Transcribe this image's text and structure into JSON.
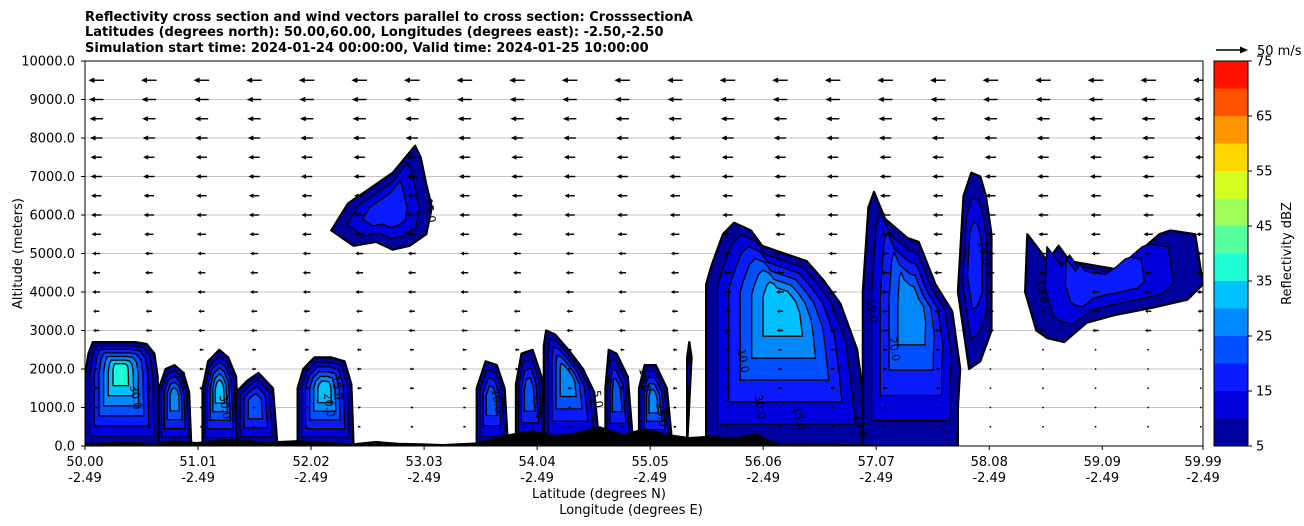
{
  "chart_data": {
    "type": "contour-cross-section",
    "title_lines": [
      "Reflectivity cross section and wind vectors parallel to cross section: CrosssectionA",
      "Latitudes (degrees north): 50.00,60.00, Longitudes (degrees east): -2.50,-2.50",
      "Simulation start time: 2024-01-24 00:00:00, Valid time: 2024-01-25 10:00:00"
    ],
    "xlabel_line1": "Latitude (degrees N)",
    "xlabel_line2": "Longitude (degrees E)",
    "ylabel": "Altitude (meters)",
    "xlim": [
      50.0,
      59.99
    ],
    "ylim": [
      0,
      10000
    ],
    "x_ticks": [
      {
        "lat": 50.0,
        "lat_label": "50.00",
        "lon_label": "-2.49"
      },
      {
        "lat": 51.01,
        "lat_label": "51.01",
        "lon_label": "-2.49"
      },
      {
        "lat": 52.02,
        "lat_label": "52.02",
        "lon_label": "-2.49"
      },
      {
        "lat": 53.03,
        "lat_label": "53.03",
        "lon_label": "-2.49"
      },
      {
        "lat": 54.04,
        "lat_label": "54.04",
        "lon_label": "-2.49"
      },
      {
        "lat": 55.05,
        "lat_label": "55.05",
        "lon_label": "-2.49"
      },
      {
        "lat": 56.06,
        "lat_label": "56.06",
        "lon_label": "-2.49"
      },
      {
        "lat": 57.07,
        "lat_label": "57.07",
        "lon_label": "-2.49"
      },
      {
        "lat": 58.08,
        "lat_label": "58.08",
        "lon_label": "-2.49"
      },
      {
        "lat": 59.09,
        "lat_label": "59.09",
        "lon_label": "-2.49"
      },
      {
        "lat": 59.99,
        "lat_label": "59.99",
        "lon_label": "-2.49"
      }
    ],
    "y_ticks": [
      {
        "value": 0,
        "label": "0.0"
      },
      {
        "value": 1000,
        "label": "1000.0"
      },
      {
        "value": 2000,
        "label": "2000.0"
      },
      {
        "value": 3000,
        "label": "3000.0"
      },
      {
        "value": 4000,
        "label": "4000.0"
      },
      {
        "value": 5000,
        "label": "5000.0"
      },
      {
        "value": 6000,
        "label": "6000.0"
      },
      {
        "value": 7000,
        "label": "7000.0"
      },
      {
        "value": 8000,
        "label": "8000.0"
      },
      {
        "value": 9000,
        "label": "9000.0"
      },
      {
        "value": 10000,
        "label": "10000.0"
      }
    ],
    "colorbar": {
      "label": "Reflectivity dBZ",
      "range": [
        5,
        75
      ],
      "tick_values": [
        5,
        15,
        25,
        35,
        45,
        55,
        65,
        75
      ],
      "tick_labels": [
        "5",
        "15",
        "25",
        "35",
        "45",
        "55",
        "65",
        "75"
      ],
      "levels": [
        5,
        10,
        15,
        20,
        25,
        30,
        35,
        40,
        45,
        50,
        55,
        60,
        65,
        70,
        75
      ],
      "colors": [
        "#00009f",
        "#0000dd",
        "#0a1bff",
        "#0050ff",
        "#0088ff",
        "#00c0ff",
        "#1fffd5",
        "#58ff9e",
        "#9fff58",
        "#d5ff1f",
        "#ffd700",
        "#ff9500",
        "#ff5200",
        "#ff1200",
        "#a80000"
      ]
    },
    "wind_reference": {
      "speed": 50,
      "label": "50 m/s"
    },
    "wind_vectors": {
      "direction": "southward",
      "levels_m": [
        500,
        1000,
        1500,
        2000,
        2500,
        3000,
        3500,
        4000,
        4500,
        5000,
        5500,
        6000,
        6500,
        7000,
        7500,
        8000,
        8500,
        9000,
        9500
      ],
      "speed_by_level_ms": [
        5,
        5,
        8,
        8,
        8,
        12,
        12,
        15,
        15,
        15,
        18,
        20,
        20,
        22,
        22,
        24,
        26,
        28,
        30
      ],
      "lat_columns": [
        50.1,
        50.57,
        51.04,
        51.51,
        51.98,
        52.45,
        52.92,
        53.39,
        53.86,
        54.33,
        54.8,
        55.27,
        55.74,
        56.21,
        56.68,
        57.15,
        57.62,
        58.09,
        58.56,
        59.03,
        59.5,
        59.97
      ],
      "calm_region": {
        "lat_min": 58.0,
        "lat_max": 59.99,
        "alt_max_m": 2600,
        "speed_ms": 0.5
      }
    },
    "cells": [
      {
        "name": "cell-50",
        "lat": [
          50.0,
          50.03,
          50.07,
          50.15,
          50.3,
          50.45,
          50.55,
          50.62,
          50.65,
          50.66,
          50.0
        ],
        "alt": [
          1800,
          2400,
          2700,
          2700,
          2700,
          2700,
          2650,
          2400,
          1800,
          0,
          0
        ],
        "peak_dbz": 35
      },
      {
        "name": "cell-50b",
        "lat": [
          50.66,
          50.72,
          50.8,
          50.88,
          50.93,
          50.95,
          50.66
        ],
        "alt": [
          1500,
          2000,
          2100,
          1900,
          1400,
          0,
          0
        ],
        "peak_dbz": 25
      },
      {
        "name": "cell-51",
        "lat": [
          51.05,
          51.1,
          51.2,
          51.28,
          51.35,
          51.38,
          51.05
        ],
        "alt": [
          1500,
          2200,
          2500,
          2300,
          1800,
          0,
          0
        ],
        "peak_dbz": 30
      },
      {
        "name": "cell-51b",
        "lat": [
          51.35,
          51.45,
          51.55,
          51.68,
          51.72,
          51.35
        ],
        "alt": [
          1400,
          1700,
          1900,
          1500,
          0,
          0
        ],
        "peak_dbz": 20
      },
      {
        "name": "cell-52",
        "lat": [
          51.9,
          51.95,
          52.05,
          52.2,
          52.32,
          52.38,
          52.4,
          51.9
        ],
        "alt": [
          1500,
          2000,
          2300,
          2300,
          2200,
          1600,
          0,
          0
        ],
        "peak_dbz": 30
      },
      {
        "name": "cell-53",
        "lat": [
          52.2,
          52.35,
          52.55,
          52.75,
          52.95,
          53.0,
          53.05,
          53.1,
          53.05,
          52.9,
          52.75,
          52.6,
          52.4,
          52.2
        ],
        "alt": [
          5600,
          6300,
          6700,
          7100,
          7800,
          7500,
          6800,
          6200,
          5500,
          5200,
          5100,
          5300,
          5200,
          5600
        ],
        "peak_dbz": 15
      },
      {
        "name": "cell-54a",
        "lat": [
          53.5,
          53.58,
          53.68,
          53.75,
          53.78,
          53.5
        ],
        "alt": [
          1500,
          2200,
          2100,
          1500,
          0,
          0
        ],
        "peak_dbz": 20
      },
      {
        "name": "cell-54b",
        "lat": [
          53.85,
          53.9,
          54.0,
          54.08,
          54.12,
          53.85
        ],
        "alt": [
          1600,
          2400,
          2500,
          1800,
          0,
          0
        ],
        "peak_dbz": 20
      },
      {
        "name": "cell-54c",
        "lat": [
          54.1,
          54.12,
          54.2,
          54.32,
          54.45,
          54.55,
          54.6,
          54.1
        ],
        "alt": [
          2600,
          3000,
          2900,
          2500,
          2000,
          1400,
          0,
          0
        ],
        "peak_dbz": 25
      },
      {
        "name": "cell-55",
        "lat": [
          54.65,
          54.68,
          54.75,
          54.85,
          54.9,
          54.65
        ],
        "alt": [
          1500,
          2500,
          2400,
          1800,
          0,
          0
        ],
        "peak_dbz": 20
      },
      {
        "name": "cell-55b",
        "lat": [
          54.95,
          55.0,
          55.1,
          55.2,
          55.25,
          54.95
        ],
        "alt": [
          1500,
          2100,
          2100,
          1500,
          0,
          0
        ],
        "peak_dbz": 25
      },
      {
        "name": "cell-55c",
        "lat": [
          55.38,
          55.4,
          55.42,
          55.38
        ],
        "alt": [
          2300,
          2700,
          2300,
          0
        ],
        "peak_dbz": 10
      },
      {
        "name": "cell-56",
        "lat": [
          55.55,
          55.6,
          55.7,
          55.8,
          55.95,
          56.05,
          56.25,
          56.45,
          56.6,
          56.75,
          56.9,
          56.95,
          57.0,
          55.55
        ],
        "alt": [
          4200,
          4700,
          5500,
          5800,
          5600,
          5200,
          5000,
          4800,
          4300,
          3700,
          2500,
          1400,
          0,
          0
        ],
        "peak_dbz": 30
      },
      {
        "name": "cell-57",
        "lat": [
          56.95,
          57.0,
          57.05,
          57.15,
          57.35,
          57.45,
          57.6,
          57.75,
          57.82,
          57.8,
          57.8,
          56.95
        ],
        "alt": [
          4000,
          6200,
          6600,
          5900,
          5400,
          5300,
          4200,
          3500,
          2000,
          1000,
          0,
          0
        ],
        "peak_dbz": 25
      },
      {
        "name": "cell-58",
        "lat": [
          57.8,
          57.85,
          57.92,
          58.0,
          58.05,
          58.1,
          58.1,
          58.0,
          57.9,
          57.8
        ],
        "alt": [
          4000,
          6500,
          7100,
          7000,
          6500,
          5500,
          3000,
          2200,
          2000,
          4000
        ],
        "peak_dbz": 15
      },
      {
        "name": "cell-59",
        "lat": [
          58.4,
          58.42,
          58.5,
          58.6,
          58.7,
          58.8,
          59.0,
          59.2,
          59.4,
          59.6,
          59.7,
          59.92,
          59.99,
          59.85,
          59.55,
          59.2,
          58.95,
          58.75,
          58.6,
          58.5,
          58.4
        ],
        "alt": [
          4000,
          5500,
          5200,
          4800,
          5200,
          4800,
          4700,
          4600,
          5000,
          5500,
          5600,
          5500,
          4200,
          3800,
          3600,
          3400,
          3200,
          2700,
          2800,
          3000,
          4000
        ],
        "peak_dbz": 15
      }
    ],
    "contour_labels": [
      {
        "lat": 50.42,
        "alt": 1250,
        "text": "30.0"
      },
      {
        "lat": 50.83,
        "alt": 1700,
        "text": "5.0"
      },
      {
        "lat": 51.22,
        "alt": 1000,
        "text": "30.0"
      },
      {
        "lat": 52.15,
        "alt": 1050,
        "text": "20.0"
      },
      {
        "lat": 52.22,
        "alt": 1500,
        "text": "15.0"
      },
      {
        "lat": 53.05,
        "alt": 6100,
        "text": "15.0"
      },
      {
        "lat": 53.65,
        "alt": 1150,
        "text": "10.0"
      },
      {
        "lat": 54.02,
        "alt": 1000,
        "text": "20.0"
      },
      {
        "lat": 54.55,
        "alt": 1200,
        "text": "5.0"
      },
      {
        "lat": 54.97,
        "alt": 1700,
        "text": "10.0"
      },
      {
        "lat": 55.12,
        "alt": 800,
        "text": "25.0"
      },
      {
        "lat": 55.85,
        "alt": 2200,
        "text": "10.0"
      },
      {
        "lat": 56.0,
        "alt": 1000,
        "text": "30.0"
      },
      {
        "lat": 56.35,
        "alt": 700,
        "text": "15.0"
      },
      {
        "lat": 56.9,
        "alt": 500,
        "text": "15.0"
      },
      {
        "lat": 57.2,
        "alt": 2500,
        "text": "20.0"
      },
      {
        "lat": 57.0,
        "alt": 3500,
        "text": "10.0"
      },
      {
        "lat": 58.0,
        "alt": 5000,
        "text": "15.0"
      },
      {
        "lat": 58.52,
        "alt": 4000,
        "text": "10.0"
      }
    ],
    "terrain": {
      "lat": [
        50.0,
        50.2,
        50.4,
        50.6,
        50.8,
        51.0,
        51.3,
        51.6,
        51.9,
        52.2,
        52.4,
        52.6,
        52.8,
        53.0,
        53.2,
        53.5,
        53.8,
        54.0,
        54.2,
        54.4,
        54.6,
        54.8,
        55.0,
        55.2,
        55.4,
        55.6,
        55.8,
        56.0,
        56.1,
        56.2,
        56.4,
        56.6,
        56.8,
        57.0,
        57.07
      ],
      "alt": [
        50,
        80,
        120,
        60,
        140,
        90,
        180,
        100,
        140,
        80,
        60,
        120,
        70,
        60,
        40,
        80,
        300,
        400,
        250,
        350,
        500,
        300,
        450,
        300,
        220,
        260,
        200,
        320,
        150,
        60,
        50,
        60,
        40,
        30,
        0
      ]
    }
  }
}
